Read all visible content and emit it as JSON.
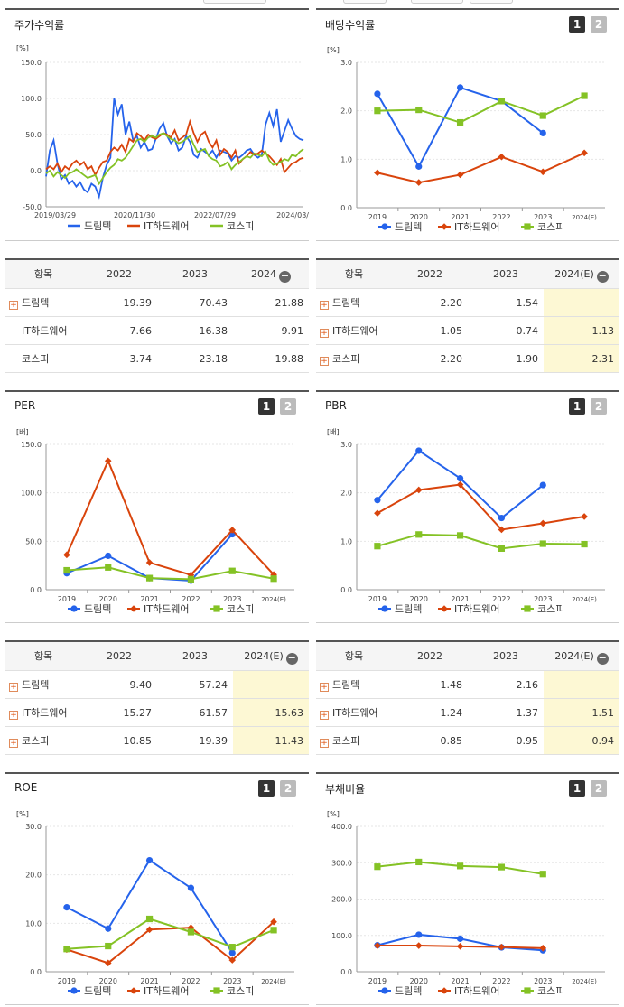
{
  "colors": {
    "drimtech": "#2563eb",
    "it": "#d9440c",
    "kospi": "#84c225"
  },
  "icons": {
    "expand": "plus-box-icon",
    "collapse": "minus-circle-icon"
  },
  "legend": [
    "드림텍",
    "IT하드웨어",
    "코스피"
  ],
  "pager": [
    "1",
    "2"
  ],
  "row_names": [
    "드림텍",
    "IT하드웨어",
    "코스피"
  ],
  "price_panel": {
    "title": "주가수익률"
  },
  "div_panel": {
    "title": "배당수익률"
  },
  "per_panel": {
    "title": "PER"
  },
  "pbr_panel": {
    "title": "PBR"
  },
  "roe_panel": {
    "title": "ROE"
  },
  "debt_panel": {
    "title": "부채비율"
  },
  "tables": {
    "price": {
      "header": [
        "항목",
        "2022",
        "2023",
        "2024"
      ],
      "rows": [
        [
          "19.39",
          "70.43",
          "21.88"
        ],
        [
          "7.66",
          "16.38",
          "9.91"
        ],
        [
          "3.74",
          "23.18",
          "19.88"
        ]
      ]
    },
    "div": {
      "header": [
        "항목",
        "2022",
        "2023",
        "2024(E)"
      ],
      "rows": [
        [
          "2.20",
          "1.54",
          ""
        ],
        [
          "1.05",
          "0.74",
          "1.13"
        ],
        [
          "2.20",
          "1.90",
          "2.31"
        ]
      ]
    },
    "per": {
      "header": [
        "항목",
        "2022",
        "2023",
        "2024(E)"
      ],
      "rows": [
        [
          "9.40",
          "57.24",
          ""
        ],
        [
          "15.27",
          "61.57",
          "15.63"
        ],
        [
          "10.85",
          "19.39",
          "11.43"
        ]
      ]
    },
    "pbr": {
      "header": [
        "항목",
        "2022",
        "2023",
        "2024(E)"
      ],
      "rows": [
        [
          "1.48",
          "2.16",
          ""
        ],
        [
          "1.24",
          "1.37",
          "1.51"
        ],
        [
          "0.85",
          "0.95",
          "0.94"
        ]
      ]
    }
  },
  "chart_data": [
    {
      "id": "price",
      "type": "line",
      "title": "주가수익률",
      "ylabel": "[%]",
      "ylim": [
        -50,
        150
      ],
      "yticks": [
        "150.0",
        "100.0",
        "50.0",
        "0.0",
        "-50.0"
      ],
      "xticks": [
        "2019/03/29",
        "2020/11/30",
        "2022/07/29",
        "2024/03/"
      ],
      "series": [
        {
          "name": "드림텍",
          "values": [
            -8,
            28,
            42,
            10,
            -12,
            -6,
            -18,
            -14,
            -22,
            -16,
            -26,
            -30,
            -18,
            -22,
            -36,
            -10,
            8,
            18,
            100,
            78,
            92,
            50,
            68,
            42,
            48,
            32,
            40,
            28,
            30,
            44,
            58,
            66,
            48,
            38,
            44,
            28,
            32,
            48,
            40,
            22,
            18,
            30,
            26,
            22,
            28,
            18,
            28,
            26,
            24,
            14,
            20,
            18,
            22,
            28,
            30,
            22,
            18,
            22,
            64,
            80,
            62,
            85,
            40,
            55,
            70,
            58,
            48,
            44,
            42
          ]
        },
        {
          "name": "IT하드웨어",
          "values": [
            2,
            6,
            2,
            10,
            -2,
            6,
            2,
            10,
            14,
            8,
            12,
            2,
            6,
            -6,
            4,
            12,
            14,
            26,
            32,
            28,
            36,
            26,
            44,
            40,
            52,
            48,
            42,
            50,
            46,
            44,
            48,
            52,
            50,
            46,
            56,
            42,
            46,
            50,
            68,
            52,
            40,
            50,
            54,
            40,
            32,
            42,
            22,
            30,
            26,
            18,
            28,
            10,
            16,
            20,
            26,
            22,
            24,
            28,
            24,
            20,
            14,
            8,
            16,
            -2,
            4,
            10,
            12,
            16,
            18
          ]
        },
        {
          "name": "코스피",
          "values": [
            -4,
            0,
            -8,
            -2,
            -6,
            -10,
            -4,
            -2,
            2,
            -2,
            -6,
            -10,
            -8,
            -6,
            -18,
            -10,
            -2,
            4,
            8,
            16,
            14,
            18,
            26,
            34,
            42,
            44,
            40,
            46,
            48,
            46,
            50,
            52,
            48,
            44,
            42,
            38,
            40,
            44,
            48,
            36,
            26,
            28,
            30,
            20,
            16,
            14,
            6,
            8,
            12,
            2,
            8,
            12,
            16,
            20,
            18,
            24,
            22,
            20,
            26,
            14,
            8,
            10,
            12,
            16,
            14,
            22,
            20,
            26,
            30
          ]
        }
      ]
    },
    {
      "id": "div",
      "type": "line",
      "title": "배당수익률",
      "ylabel": "[%]",
      "ylim": [
        0,
        3
      ],
      "yticks": [
        "3.0",
        "2.0",
        "1.0",
        "0.0"
      ],
      "categories": [
        "2019",
        "2020",
        "2021",
        "2022",
        "2023",
        "2024(E)"
      ],
      "series": [
        {
          "name": "드림텍",
          "values": [
            2.35,
            0.85,
            2.48,
            2.2,
            1.54,
            null
          ]
        },
        {
          "name": "IT하드웨어",
          "values": [
            0.72,
            0.52,
            0.68,
            1.05,
            0.74,
            1.13
          ]
        },
        {
          "name": "코스피",
          "values": [
            2.0,
            2.02,
            1.76,
            2.2,
            1.9,
            2.31
          ]
        }
      ]
    },
    {
      "id": "per",
      "type": "line",
      "title": "PER",
      "ylabel": "[배]",
      "ylim": [
        0,
        150
      ],
      "yticks": [
        "150.0",
        "100.0",
        "50.0",
        "0.0"
      ],
      "categories": [
        "2019",
        "2020",
        "2021",
        "2022",
        "2023",
        "2024(E)"
      ],
      "series": [
        {
          "name": "드림텍",
          "values": [
            17,
            35,
            12,
            9.4,
            57.24,
            null
          ]
        },
        {
          "name": "IT하드웨어",
          "values": [
            36,
            133,
            28,
            15.27,
            61.57,
            15.63
          ]
        },
        {
          "name": "코스피",
          "values": [
            20,
            23,
            12,
            10.85,
            19.39,
            11.43
          ]
        }
      ]
    },
    {
      "id": "pbr",
      "type": "line",
      "title": "PBR",
      "ylabel": "[배]",
      "ylim": [
        0,
        3
      ],
      "yticks": [
        "3.0",
        "2.0",
        "1.0",
        "0.0"
      ],
      "categories": [
        "2019",
        "2020",
        "2021",
        "2022",
        "2023",
        "2024(E)"
      ],
      "series": [
        {
          "name": "드림텍",
          "values": [
            1.85,
            2.87,
            2.3,
            1.48,
            2.16,
            null
          ]
        },
        {
          "name": "IT하드웨어",
          "values": [
            1.58,
            2.06,
            2.17,
            1.24,
            1.37,
            1.51
          ]
        },
        {
          "name": "코스피",
          "values": [
            0.9,
            1.14,
            1.12,
            0.85,
            0.95,
            0.94
          ]
        }
      ]
    },
    {
      "id": "roe",
      "type": "line",
      "title": "ROE",
      "ylabel": "[%]",
      "ylim": [
        0,
        30
      ],
      "yticks": [
        "30.0",
        "20.0",
        "10.0",
        "0.0"
      ],
      "categories": [
        "2019",
        "2020",
        "2021",
        "2022",
        "2023",
        "2024(E)"
      ],
      "series": [
        {
          "name": "드림텍",
          "values": [
            13.3,
            8.9,
            23.0,
            17.3,
            3.9,
            null
          ]
        },
        {
          "name": "IT하드웨어",
          "values": [
            4.6,
            1.8,
            8.7,
            9.1,
            2.4,
            10.3
          ]
        },
        {
          "name": "코스피",
          "values": [
            4.7,
            5.3,
            10.9,
            8.2,
            5.1,
            8.6
          ]
        }
      ]
    },
    {
      "id": "debt",
      "type": "line",
      "title": "부채비율",
      "ylabel": "[%]",
      "ylim": [
        0,
        400
      ],
      "yticks": [
        "400.0",
        "300.0",
        "200.0",
        "100.0",
        "0.0"
      ],
      "categories": [
        "2019",
        "2020",
        "2021",
        "2022",
        "2023",
        "2024(E)"
      ],
      "series": [
        {
          "name": "드림텍",
          "values": [
            73,
            102,
            91,
            67,
            59,
            null
          ]
        },
        {
          "name": "IT하드웨어",
          "values": [
            72,
            72,
            70,
            68,
            65,
            null
          ]
        },
        {
          "name": "코스피",
          "values": [
            289,
            302,
            291,
            288,
            269,
            null
          ]
        }
      ]
    }
  ]
}
